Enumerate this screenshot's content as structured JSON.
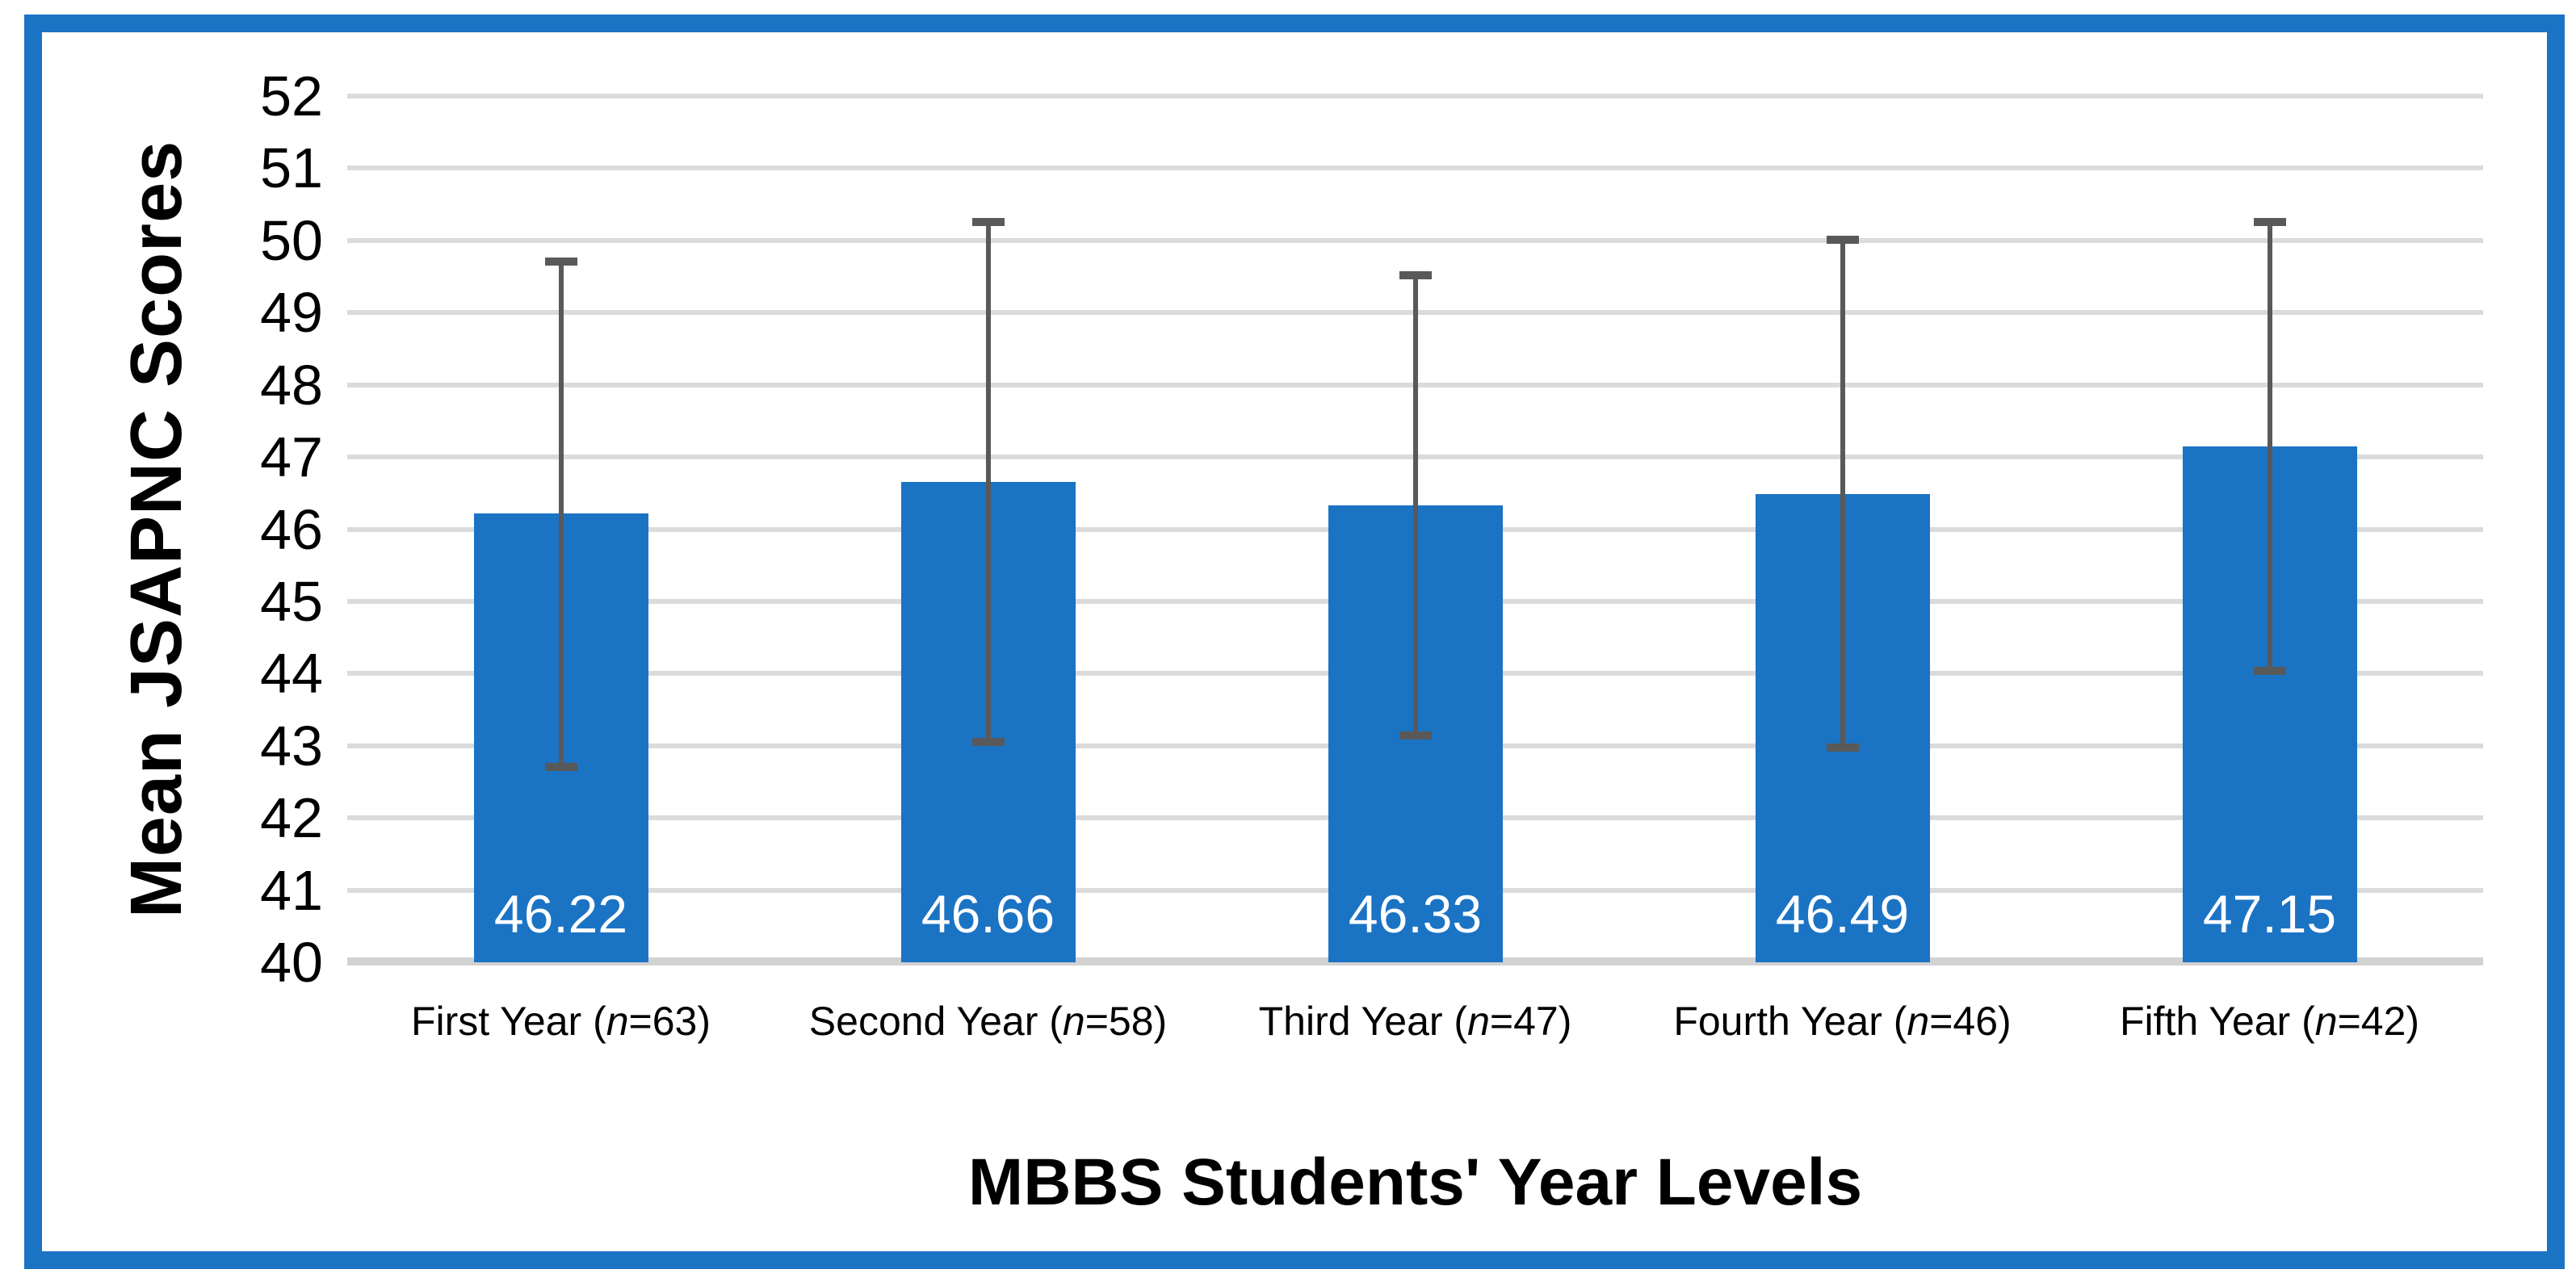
{
  "chart_data": {
    "type": "bar",
    "title": "",
    "categories": [
      "First Year (n=63)",
      "Second Year (n=58)",
      "Third Year (n=47)",
      "Fourth Year (n=46)",
      "Fifth Year (n=42)"
    ],
    "group_names": [
      "First Year",
      "Second Year",
      "Third Year",
      "Fourth Year",
      "Fifth Year"
    ],
    "sample_sizes": [
      63,
      58,
      47,
      46,
      42
    ],
    "values": [
      46.22,
      46.66,
      46.33,
      46.49,
      47.15
    ],
    "data_labels": [
      "46.22",
      "46.66",
      "46.33",
      "46.49",
      "47.15"
    ],
    "error_bars": {
      "upper": [
        49.71,
        50.25,
        49.52,
        50.01,
        50.25
      ],
      "lower": [
        42.71,
        43.05,
        43.14,
        42.97,
        44.04
      ]
    },
    "xlabel": "MBBS Students' Year Levels",
    "ylabel": "Mean JSAPNC Scores",
    "ylim": [
      40,
      52
    ],
    "yticks": [
      40,
      41,
      42,
      43,
      44,
      45,
      46,
      47,
      48,
      49,
      50,
      51,
      52
    ],
    "grid": "horizontal",
    "legend": "none",
    "colors": {
      "bar": "#1B73C4",
      "frame": "#1B73C4",
      "error_bar": "#595959",
      "gridline": "#DBDBDB",
      "axis_line": "#D2D2D2",
      "data_label": "#FFFFFF",
      "text": "#000000",
      "background": "#FFFFFF"
    }
  }
}
